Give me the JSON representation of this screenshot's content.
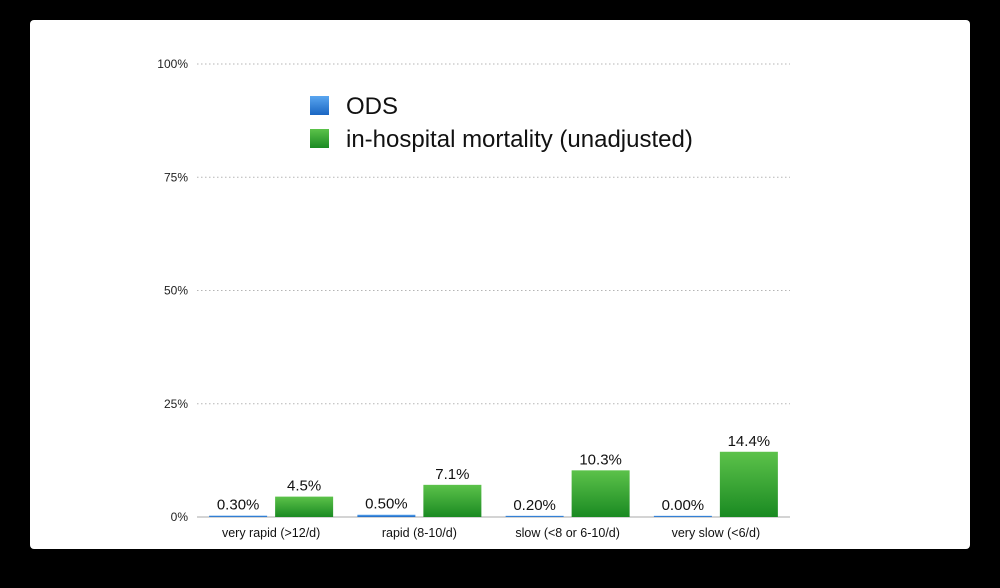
{
  "chart_data": {
    "type": "bar",
    "categories": [
      "very rapid (>12/d)",
      "rapid (8-10/d)",
      "slow (<8 or 6-10/d)",
      "very slow (<6/d)"
    ],
    "series": [
      {
        "name": "ODS",
        "values": [
          0.3,
          0.5,
          0.2,
          0.0
        ],
        "labels": [
          "0.30%",
          "0.50%",
          "0.20%",
          "0.00%"
        ],
        "color": "#2f7fd8"
      },
      {
        "name": "in-hospital mortality (unadjusted)",
        "values": [
          4.5,
          7.1,
          10.3,
          14.4
        ],
        "labels": [
          "4.5%",
          "7.1%",
          "10.3%",
          "14.4%"
        ],
        "color": "#2d9a2d"
      }
    ],
    "ylim": [
      0,
      100
    ],
    "yticks": [
      "0%",
      "25%",
      "50%",
      "75%",
      "100%"
    ],
    "ytick_values": [
      0,
      25,
      50,
      75,
      100
    ],
    "grid": true,
    "legend_position": "top-left",
    "title": "",
    "xlabel": "",
    "ylabel": ""
  }
}
